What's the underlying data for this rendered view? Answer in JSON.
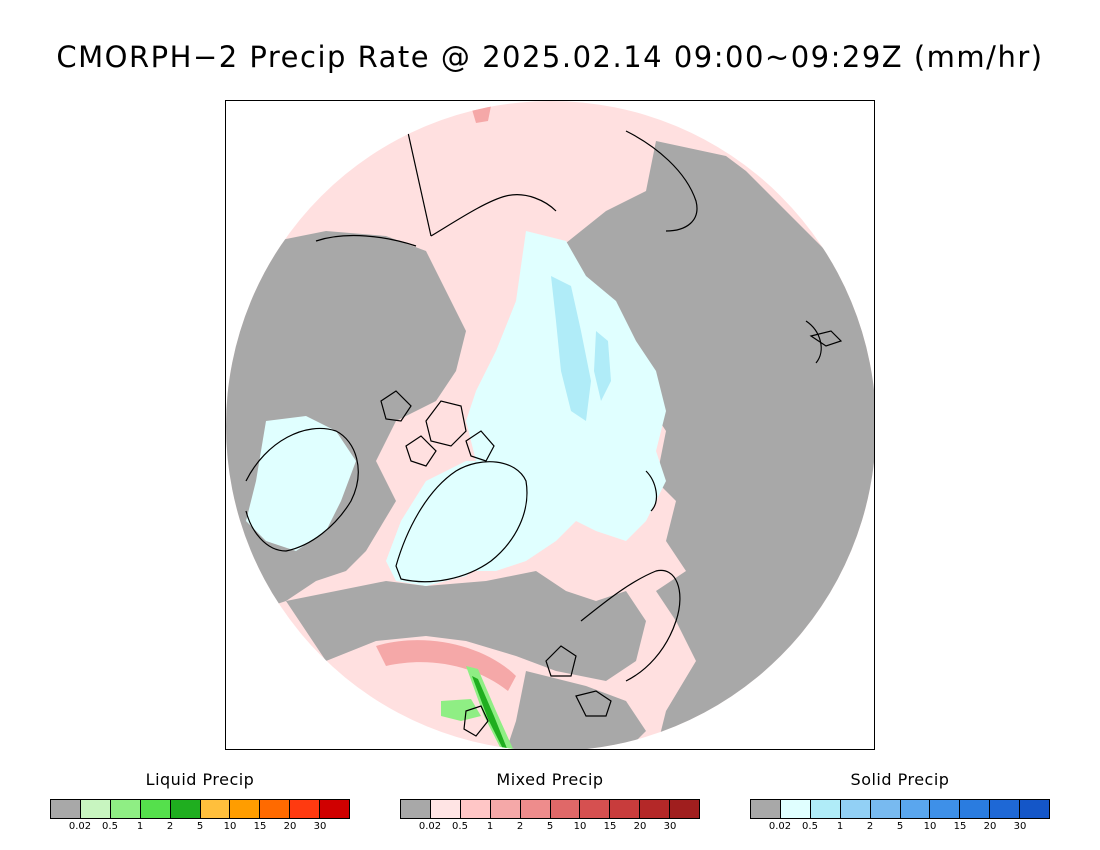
{
  "title": "CMORPH−2 Precip Rate @ 2025.02.14 09:00~09:29Z (mm/hr)",
  "legends": [
    {
      "title": "Liquid Precip",
      "colors": [
        "#a8a8a8",
        "#c8f5c0",
        "#8fee84",
        "#55e04c",
        "#1fae1f",
        "#ffbf3c",
        "#ff9d00",
        "#ff6a00",
        "#ff3a10",
        "#d00000"
      ],
      "ticks": [
        "0.02",
        "0.5",
        "1",
        "2",
        "5",
        "10",
        "15",
        "20",
        "30"
      ]
    },
    {
      "title": "Mixed Precip",
      "colors": [
        "#a8a8a8",
        "#ffe4e4",
        "#ffc6c6",
        "#f5a8a8",
        "#ee8c8c",
        "#e06868",
        "#d65050",
        "#c83c3c",
        "#b42828",
        "#a01e1e"
      ],
      "ticks": [
        "0.02",
        "0.5",
        "1",
        "2",
        "5",
        "10",
        "15",
        "20",
        "30"
      ]
    },
    {
      "title": "Solid Precip",
      "colors": [
        "#a8a8a8",
        "#e0ffff",
        "#b0ecf8",
        "#92d0f5",
        "#78baf0",
        "#5aa6ee",
        "#3e90e8",
        "#2a7ce0",
        "#1e68d6",
        "#1456c8"
      ],
      "ticks": [
        "0.02",
        "0.5",
        "1",
        "2",
        "5",
        "10",
        "15",
        "20",
        "30"
      ]
    }
  ],
  "map": {
    "colors": {
      "no_precip": "#a8a8a8",
      "mixed_light": "#ffe0e0",
      "mixed_mod": "#f5a8a8",
      "solid_light": "#e0ffff",
      "solid_mod": "#b0ecf8",
      "liquid_light": "#8fee84",
      "liquid_mod": "#1fae1f",
      "coast": "#000000"
    }
  }
}
